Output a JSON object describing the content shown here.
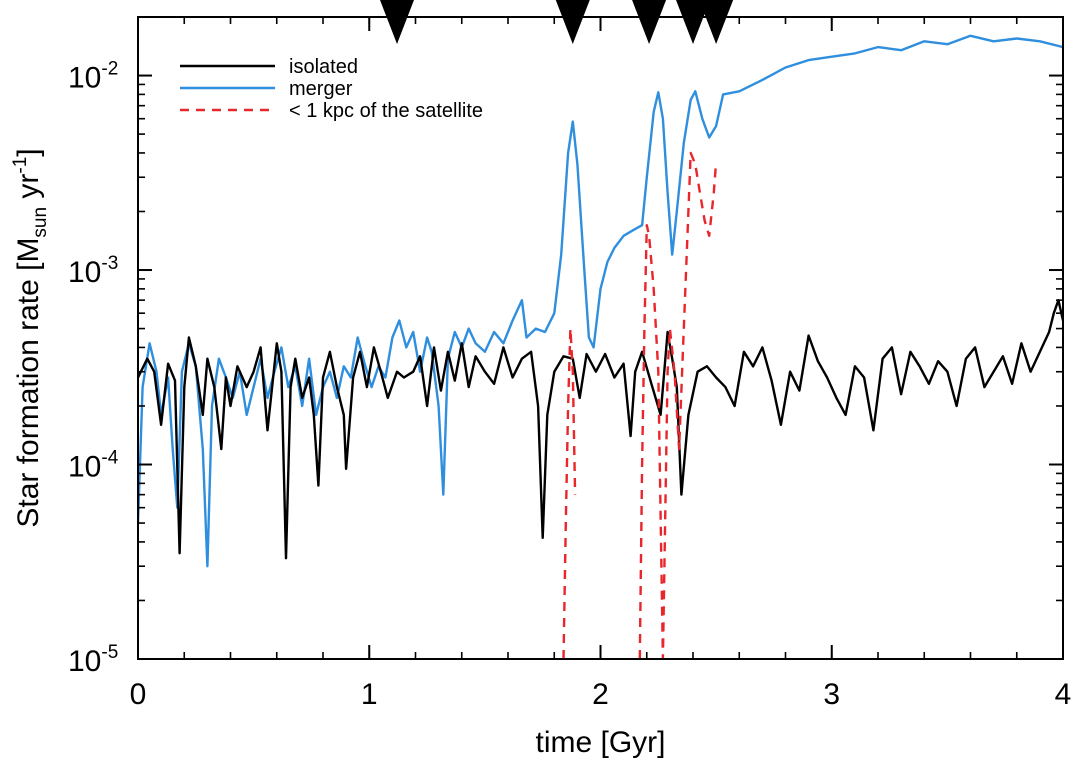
{
  "chart_data": {
    "type": "line",
    "xlabel": "time [Gyr]",
    "ylabel": "Star formation rate [M",
    "ylabel_sub": "sun",
    "ylabel_after": " yr",
    "ylabel_sup": "-1",
    "ylabel_close": "]",
    "xlim": [
      0,
      4
    ],
    "ylim": [
      1e-05,
      0.02
    ],
    "yscale": "log",
    "x_ticks": [
      "0",
      "1",
      "2",
      "3",
      "4"
    ],
    "x_tick_values": [
      0,
      1,
      2,
      3,
      4
    ],
    "y_ticks": [
      {
        "base": "10",
        "exp": "-5",
        "value": 1e-05
      },
      {
        "base": "10",
        "exp": "-4",
        "value": 0.0001
      },
      {
        "base": "10",
        "exp": "-3",
        "value": 0.001
      },
      {
        "base": "10",
        "exp": "-2",
        "value": 0.01
      }
    ],
    "legend_position": "top-left",
    "markers": {
      "shape": "downward-triangle",
      "x": [
        1.12,
        1.88,
        2.21,
        2.4,
        2.5
      ]
    },
    "series": [
      {
        "name": "isolated",
        "color": "#000000",
        "dash": "solid",
        "points": [
          [
            0.0,
            0.00028
          ],
          [
            0.04,
            0.00035
          ],
          [
            0.07,
            0.0003
          ],
          [
            0.1,
            0.00016
          ],
          [
            0.13,
            0.00033
          ],
          [
            0.16,
            0.00027
          ],
          [
            0.18,
            3.5e-05
          ],
          [
            0.2,
            0.00025
          ],
          [
            0.22,
            0.00045
          ],
          [
            0.25,
            0.00032
          ],
          [
            0.28,
            0.00018
          ],
          [
            0.3,
            0.00035
          ],
          [
            0.33,
            0.00025
          ],
          [
            0.36,
            0.00012
          ],
          [
            0.38,
            0.00028
          ],
          [
            0.4,
            0.0002
          ],
          [
            0.43,
            0.00032
          ],
          [
            0.47,
            0.00025
          ],
          [
            0.5,
            0.0003
          ],
          [
            0.53,
            0.0004
          ],
          [
            0.56,
            0.00015
          ],
          [
            0.6,
            0.00042
          ],
          [
            0.62,
            0.0003
          ],
          [
            0.64,
            3.3e-05
          ],
          [
            0.66,
            0.00025
          ],
          [
            0.68,
            0.00035
          ],
          [
            0.71,
            0.00022
          ],
          [
            0.74,
            0.00028
          ],
          [
            0.76,
            0.00018
          ],
          [
            0.78,
            7.8e-05
          ],
          [
            0.8,
            0.00028
          ],
          [
            0.83,
            0.00038
          ],
          [
            0.86,
            0.00025
          ],
          [
            0.89,
            0.00018
          ],
          [
            0.9,
            9.5e-05
          ],
          [
            0.93,
            0.00028
          ],
          [
            0.96,
            0.00038
          ],
          [
            0.99,
            0.00025
          ],
          [
            1.02,
            0.0004
          ],
          [
            1.05,
            0.0003
          ],
          [
            1.08,
            0.00022
          ],
          [
            1.12,
            0.0003
          ],
          [
            1.15,
            0.00028
          ],
          [
            1.19,
            0.0003
          ],
          [
            1.22,
            0.00036
          ],
          [
            1.25,
            0.0002
          ],
          [
            1.28,
            0.0004
          ],
          [
            1.31,
            0.00024
          ],
          [
            1.34,
            0.00038
          ],
          [
            1.37,
            0.00027
          ],
          [
            1.4,
            0.00042
          ],
          [
            1.43,
            0.00025
          ],
          [
            1.46,
            0.00036
          ],
          [
            1.5,
            0.0003
          ],
          [
            1.54,
            0.00026
          ],
          [
            1.58,
            0.0004
          ],
          [
            1.62,
            0.00028
          ],
          [
            1.66,
            0.00035
          ],
          [
            1.7,
            0.00038
          ],
          [
            1.73,
            0.0002
          ],
          [
            1.75,
            4.2e-05
          ],
          [
            1.77,
            0.00018
          ],
          [
            1.8,
            0.0003
          ],
          [
            1.84,
            0.00036
          ],
          [
            1.88,
            0.00035
          ],
          [
            1.91,
            0.00022
          ],
          [
            1.94,
            0.00037
          ],
          [
            1.98,
            0.0003
          ],
          [
            2.02,
            0.00037
          ],
          [
            2.06,
            0.00028
          ],
          [
            2.1,
            0.00033
          ],
          [
            2.13,
            0.00014
          ],
          [
            2.15,
            0.0003
          ],
          [
            2.18,
            0.00038
          ],
          [
            2.22,
            0.00026
          ],
          [
            2.26,
            0.00018
          ],
          [
            2.29,
            0.00048
          ],
          [
            2.31,
            0.00035
          ],
          [
            2.33,
            0.00025
          ],
          [
            2.35,
            7e-05
          ],
          [
            2.38,
            0.00018
          ],
          [
            2.42,
            0.0003
          ],
          [
            2.46,
            0.00032
          ],
          [
            2.5,
            0.00028
          ],
          [
            2.54,
            0.00025
          ],
          [
            2.58,
            0.0002
          ],
          [
            2.62,
            0.00038
          ],
          [
            2.66,
            0.00032
          ],
          [
            2.7,
            0.0004
          ],
          [
            2.74,
            0.00027
          ],
          [
            2.78,
            0.00016
          ],
          [
            2.82,
            0.0003
          ],
          [
            2.86,
            0.00024
          ],
          [
            2.9,
            0.00046
          ],
          [
            2.94,
            0.00034
          ],
          [
            2.98,
            0.00028
          ],
          [
            3.02,
            0.00022
          ],
          [
            3.06,
            0.00018
          ],
          [
            3.1,
            0.00032
          ],
          [
            3.14,
            0.00028
          ],
          [
            3.18,
            0.00015
          ],
          [
            3.22,
            0.00035
          ],
          [
            3.26,
            0.0004
          ],
          [
            3.3,
            0.00023
          ],
          [
            3.34,
            0.00038
          ],
          [
            3.38,
            0.00032
          ],
          [
            3.42,
            0.00026
          ],
          [
            3.46,
            0.00034
          ],
          [
            3.5,
            0.0003
          ],
          [
            3.54,
            0.0002
          ],
          [
            3.58,
            0.00035
          ],
          [
            3.62,
            0.0004
          ],
          [
            3.66,
            0.00025
          ],
          [
            3.7,
            0.0003
          ],
          [
            3.74,
            0.00036
          ],
          [
            3.78,
            0.00026
          ],
          [
            3.82,
            0.00042
          ],
          [
            3.86,
            0.0003
          ],
          [
            3.9,
            0.00038
          ],
          [
            3.94,
            0.00048
          ],
          [
            3.96,
            0.0006
          ],
          [
            3.98,
            0.0007
          ],
          [
            4.0,
            0.00055
          ]
        ]
      },
      {
        "name": "merger",
        "color": "#2f8fde",
        "dash": "solid",
        "points": [
          [
            0.0,
            5e-05
          ],
          [
            0.02,
            0.00025
          ],
          [
            0.05,
            0.00042
          ],
          [
            0.08,
            0.0003
          ],
          [
            0.1,
            0.00018
          ],
          [
            0.13,
            0.00028
          ],
          [
            0.15,
            0.00012
          ],
          [
            0.17,
            6e-05
          ],
          [
            0.19,
            0.0003
          ],
          [
            0.22,
            0.00042
          ],
          [
            0.25,
            0.00032
          ],
          [
            0.28,
            0.00012
          ],
          [
            0.3,
            3e-05
          ],
          [
            0.32,
            0.0002
          ],
          [
            0.35,
            0.00035
          ],
          [
            0.38,
            0.00028
          ],
          [
            0.41,
            0.00022
          ],
          [
            0.44,
            0.0003
          ],
          [
            0.47,
            0.00018
          ],
          [
            0.5,
            0.00025
          ],
          [
            0.53,
            0.00035
          ],
          [
            0.56,
            0.00022
          ],
          [
            0.59,
            0.0003
          ],
          [
            0.62,
            0.0004
          ],
          [
            0.65,
            0.00025
          ],
          [
            0.68,
            0.00032
          ],
          [
            0.71,
            0.0002
          ],
          [
            0.74,
            0.00035
          ],
          [
            0.77,
            0.00018
          ],
          [
            0.8,
            0.00025
          ],
          [
            0.83,
            0.0003
          ],
          [
            0.86,
            0.00022
          ],
          [
            0.89,
            0.00032
          ],
          [
            0.92,
            0.00028
          ],
          [
            0.95,
            0.00045
          ],
          [
            0.98,
            0.00033
          ],
          [
            1.01,
            0.00025
          ],
          [
            1.04,
            0.00032
          ],
          [
            1.07,
            0.00028
          ],
          [
            1.1,
            0.00045
          ],
          [
            1.13,
            0.00055
          ],
          [
            1.16,
            0.0004
          ],
          [
            1.19,
            0.00048
          ],
          [
            1.22,
            0.0003
          ],
          [
            1.25,
            0.00045
          ],
          [
            1.27,
            0.00038
          ],
          [
            1.3,
            0.0002
          ],
          [
            1.32,
            7e-05
          ],
          [
            1.34,
            0.00035
          ],
          [
            1.37,
            0.00048
          ],
          [
            1.4,
            0.0004
          ],
          [
            1.43,
            0.0005
          ],
          [
            1.46,
            0.00042
          ],
          [
            1.5,
            0.00038
          ],
          [
            1.54,
            0.00048
          ],
          [
            1.58,
            0.00042
          ],
          [
            1.62,
            0.00055
          ],
          [
            1.66,
            0.0007
          ],
          [
            1.68,
            0.00045
          ],
          [
            1.72,
            0.0005
          ],
          [
            1.76,
            0.00048
          ],
          [
            1.8,
            0.0006
          ],
          [
            1.83,
            0.0012
          ],
          [
            1.86,
            0.004
          ],
          [
            1.88,
            0.0058
          ],
          [
            1.9,
            0.0035
          ],
          [
            1.93,
            0.001
          ],
          [
            1.95,
            0.00045
          ],
          [
            1.97,
            0.0004
          ],
          [
            2.0,
            0.0008
          ],
          [
            2.03,
            0.0011
          ],
          [
            2.06,
            0.0013
          ],
          [
            2.1,
            0.0015
          ],
          [
            2.14,
            0.0016
          ],
          [
            2.18,
            0.0017
          ],
          [
            2.2,
            0.003
          ],
          [
            2.23,
            0.0065
          ],
          [
            2.25,
            0.0082
          ],
          [
            2.27,
            0.006
          ],
          [
            2.29,
            0.0025
          ],
          [
            2.31,
            0.0012
          ],
          [
            2.33,
            0.002
          ],
          [
            2.36,
            0.0045
          ],
          [
            2.39,
            0.0075
          ],
          [
            2.41,
            0.0083
          ],
          [
            2.44,
            0.006
          ],
          [
            2.47,
            0.0048
          ],
          [
            2.5,
            0.0055
          ],
          [
            2.53,
            0.008
          ],
          [
            2.6,
            0.0083
          ],
          [
            2.7,
            0.0095
          ],
          [
            2.8,
            0.011
          ],
          [
            2.9,
            0.012
          ],
          [
            3.0,
            0.0125
          ],
          [
            3.1,
            0.013
          ],
          [
            3.2,
            0.014
          ],
          [
            3.3,
            0.0135
          ],
          [
            3.4,
            0.015
          ],
          [
            3.5,
            0.0145
          ],
          [
            3.6,
            0.016
          ],
          [
            3.7,
            0.015
          ],
          [
            3.8,
            0.0155
          ],
          [
            3.9,
            0.015
          ],
          [
            4.0,
            0.014
          ]
        ]
      },
      {
        "name": "< 1 kpc of the satellite",
        "color": "#e8262b",
        "dash": "dashed",
        "segments": [
          [
            [
              1.84,
              1e-05
            ],
            [
              1.85,
              5e-05
            ],
            [
              1.86,
              0.0002
            ],
            [
              1.87,
              0.0005
            ],
            [
              1.88,
              0.0003
            ],
            [
              1.89,
              7e-05
            ]
          ],
          [
            [
              2.17,
              1e-05
            ],
            [
              2.18,
              0.0001
            ],
            [
              2.19,
              0.0005
            ],
            [
              2.2,
              0.0017
            ],
            [
              2.21,
              0.0015
            ],
            [
              2.23,
              0.0008
            ],
            [
              2.25,
              0.0003
            ],
            [
              2.27,
              1e-05
            ],
            [
              2.29,
              0.0003
            ],
            [
              2.3,
              0.0005
            ],
            [
              2.32,
              0.0003
            ],
            [
              2.34,
              0.00012
            ],
            [
              2.36,
              0.0005
            ],
            [
              2.38,
              0.002
            ],
            [
              2.39,
              0.004
            ],
            [
              2.41,
              0.0035
            ],
            [
              2.43,
              0.0025
            ],
            [
              2.45,
              0.0018
            ],
            [
              2.47,
              0.0015
            ],
            [
              2.49,
              0.0025
            ],
            [
              2.5,
              0.0036
            ]
          ]
        ]
      }
    ]
  }
}
